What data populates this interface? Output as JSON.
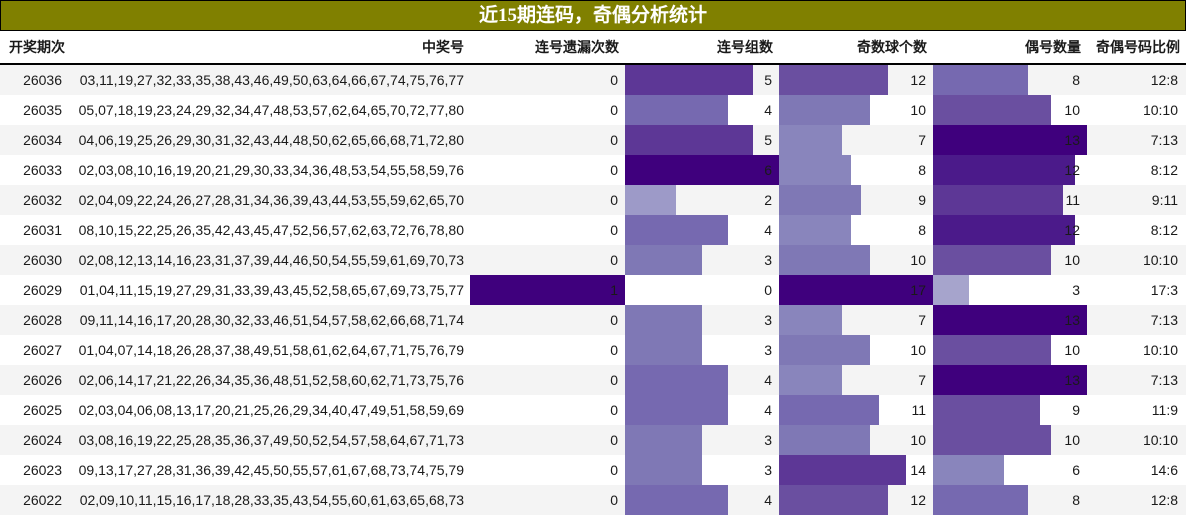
{
  "title": "近15期连码，奇偶分析统计",
  "headers": {
    "period": "开奖期次",
    "numbers": "中奖号",
    "consec_miss": "连号遗漏次数",
    "consec_groups": "连号组数",
    "odd_count": "奇数球个数",
    "even_count": "偶号数量",
    "ratio": "奇偶号码比例"
  },
  "colors": {
    "title_bg": "#808000",
    "row_alt": "#f4f4f4",
    "bar_scale": [
      "#dcdaeb",
      "#c4c3e1",
      "#b2b1d6",
      "#a6a4cc",
      "#9d9ac8",
      "#8985bc",
      "#7f78b5",
      "#7669b0",
      "#6a4fa0",
      "#5d3796",
      "#4b1a8a",
      "#3f007d"
    ]
  },
  "scales": {
    "consec_miss_max": 1,
    "consec_groups_max": 6,
    "odd_max": 17,
    "even_max": 13
  },
  "rows": [
    {
      "period": "26036",
      "numbers": "03,11,19,27,32,33,35,38,43,46,49,50,63,64,66,67,74,75,76,77",
      "consec_miss": "0",
      "consec_groups": "5",
      "odd_count": "12",
      "even_count": "8",
      "ratio": "12:8"
    },
    {
      "period": "26035",
      "numbers": "05,07,18,19,23,24,29,32,34,47,48,53,57,62,64,65,70,72,77,80",
      "consec_miss": "0",
      "consec_groups": "4",
      "odd_count": "10",
      "even_count": "10",
      "ratio": "10:10"
    },
    {
      "period": "26034",
      "numbers": "04,06,19,25,26,29,30,31,32,43,44,48,50,62,65,66,68,71,72,80",
      "consec_miss": "0",
      "consec_groups": "5",
      "odd_count": "7",
      "even_count": "13",
      "ratio": "7:13"
    },
    {
      "period": "26033",
      "numbers": "02,03,08,10,16,19,20,21,29,30,33,34,36,48,53,54,55,58,59,76",
      "consec_miss": "0",
      "consec_groups": "6",
      "odd_count": "8",
      "even_count": "12",
      "ratio": "8:12"
    },
    {
      "period": "26032",
      "numbers": "02,04,09,22,24,26,27,28,31,34,36,39,43,44,53,55,59,62,65,70",
      "consec_miss": "0",
      "consec_groups": "2",
      "odd_count": "9",
      "even_count": "11",
      "ratio": "9:11"
    },
    {
      "period": "26031",
      "numbers": "08,10,15,22,25,26,35,42,43,45,47,52,56,57,62,63,72,76,78,80",
      "consec_miss": "0",
      "consec_groups": "4",
      "odd_count": "8",
      "even_count": "12",
      "ratio": "8:12"
    },
    {
      "period": "26030",
      "numbers": "02,08,12,13,14,16,23,31,37,39,44,46,50,54,55,59,61,69,70,73",
      "consec_miss": "0",
      "consec_groups": "3",
      "odd_count": "10",
      "even_count": "10",
      "ratio": "10:10"
    },
    {
      "period": "26029",
      "numbers": "01,04,11,15,19,27,29,31,33,39,43,45,52,58,65,67,69,73,75,77",
      "consec_miss": "1",
      "consec_groups": "0",
      "odd_count": "17",
      "even_count": "3",
      "ratio": "17:3"
    },
    {
      "period": "26028",
      "numbers": "09,11,14,16,17,20,28,30,32,33,46,51,54,57,58,62,66,68,71,74",
      "consec_miss": "0",
      "consec_groups": "3",
      "odd_count": "7",
      "even_count": "13",
      "ratio": "7:13"
    },
    {
      "period": "26027",
      "numbers": "01,04,07,14,18,26,28,37,38,49,51,58,61,62,64,67,71,75,76,79",
      "consec_miss": "0",
      "consec_groups": "3",
      "odd_count": "10",
      "even_count": "10",
      "ratio": "10:10"
    },
    {
      "period": "26026",
      "numbers": "02,06,14,17,21,22,26,34,35,36,48,51,52,58,60,62,71,73,75,76",
      "consec_miss": "0",
      "consec_groups": "4",
      "odd_count": "7",
      "even_count": "13",
      "ratio": "7:13"
    },
    {
      "period": "26025",
      "numbers": "02,03,04,06,08,13,17,20,21,25,26,29,34,40,47,49,51,58,59,69",
      "consec_miss": "0",
      "consec_groups": "4",
      "odd_count": "11",
      "even_count": "9",
      "ratio": "11:9"
    },
    {
      "period": "26024",
      "numbers": "03,08,16,19,22,25,28,35,36,37,49,50,52,54,57,58,64,67,71,73",
      "consec_miss": "0",
      "consec_groups": "3",
      "odd_count": "10",
      "even_count": "10",
      "ratio": "10:10"
    },
    {
      "period": "26023",
      "numbers": "09,13,17,27,28,31,36,39,42,45,50,55,57,61,67,68,73,74,75,79",
      "consec_miss": "0",
      "consec_groups": "3",
      "odd_count": "14",
      "even_count": "6",
      "ratio": "14:6"
    },
    {
      "period": "26022",
      "numbers": "02,09,10,11,15,16,17,18,28,33,35,43,54,55,60,61,63,65,68,73",
      "consec_miss": "0",
      "consec_groups": "4",
      "odd_count": "12",
      "even_count": "8",
      "ratio": "12:8"
    }
  ]
}
